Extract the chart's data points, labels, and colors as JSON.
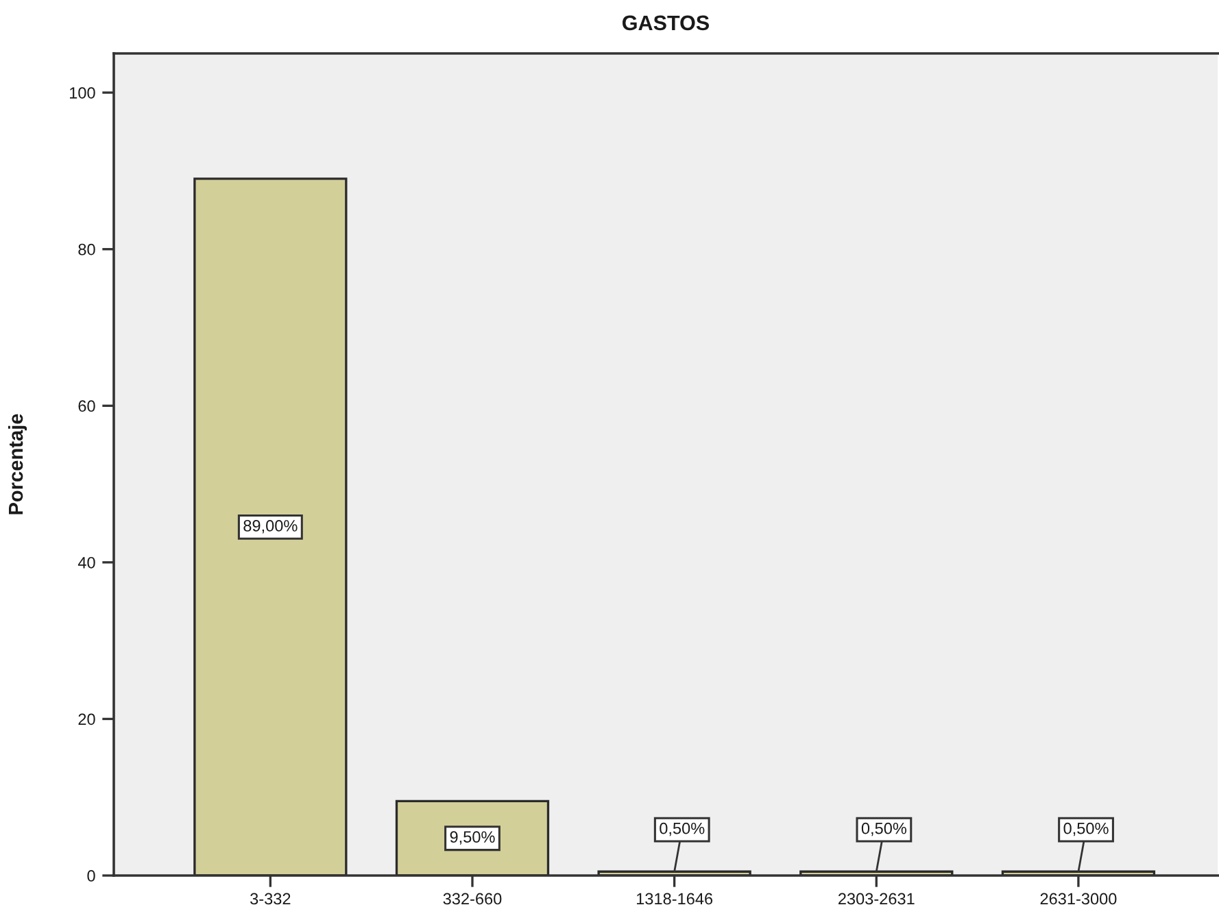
{
  "chart_data": {
    "type": "bar",
    "title": "GASTOS",
    "ylabel": "Porcentaje",
    "categories": [
      "3-332",
      "332-660",
      "1318-1646",
      "2303-2631",
      "2631-3000"
    ],
    "values": [
      89,
      9.5,
      0.5,
      0.5,
      0.5
    ],
    "value_labels": [
      "89,00%",
      "9,50%",
      "0,50%",
      "0,50%",
      "0,50%"
    ],
    "color": "#d3cf99",
    "ylim": [
      0,
      105
    ],
    "yticks": [
      0,
      20,
      40,
      60,
      80,
      100
    ]
  }
}
